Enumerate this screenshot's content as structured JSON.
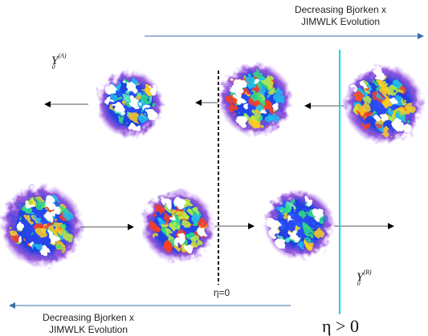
{
  "top_label": {
    "line1": "Decreasing Bjorken x",
    "line2": "JIMWLK Evolution"
  },
  "bottom_label": {
    "line1": "Decreasing Bjorken x",
    "line2": "JIMWLK Evolution"
  },
  "nucleus_a": {
    "base": "Y",
    "sub": "0",
    "sup": "(A)"
  },
  "nucleus_b": {
    "base": "Y",
    "sub": "0",
    "sup": "(B)"
  },
  "eta_zero": "η=0",
  "eta_positive": "η > 0"
}
